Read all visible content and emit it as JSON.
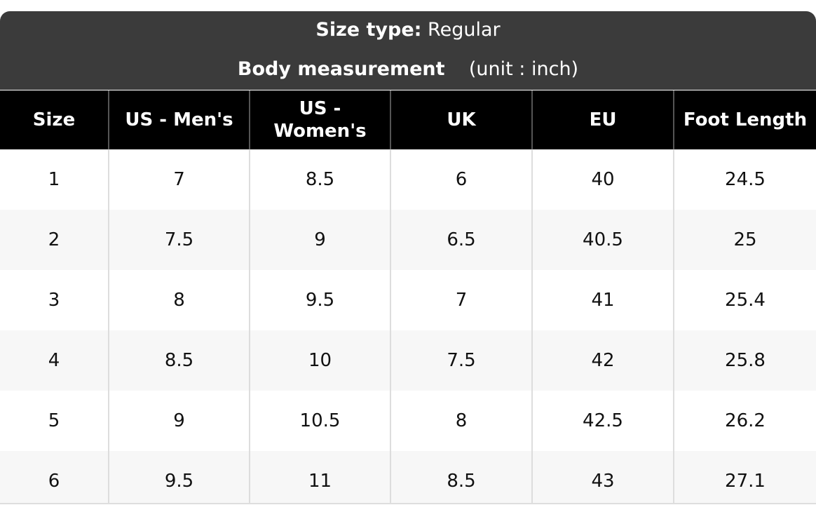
{
  "header": {
    "size_type_label": "Size type:",
    "size_type_value": "Regular",
    "body_label": "Body measurement",
    "unit": "(unit : inch)"
  },
  "table": {
    "columns": [
      "Size",
      "US - Men's",
      "US - Women's",
      "UK",
      "EU",
      "Foot Length"
    ],
    "rows": [
      [
        "1",
        "7",
        "8.5",
        "6",
        "40",
        "24.5"
      ],
      [
        "2",
        "7.5",
        "9",
        "6.5",
        "40.5",
        "25"
      ],
      [
        "3",
        "8",
        "9.5",
        "7",
        "41",
        "25.4"
      ],
      [
        "4",
        "8.5",
        "10",
        "7.5",
        "42",
        "25.8"
      ],
      [
        "5",
        "9",
        "10.5",
        "8",
        "42.5",
        "26.2"
      ],
      [
        "6",
        "9.5",
        "11",
        "8.5",
        "43",
        "27.1"
      ]
    ]
  }
}
